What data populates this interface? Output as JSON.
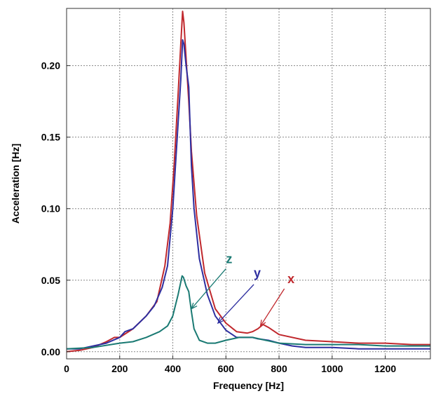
{
  "chart_data": {
    "type": "line",
    "xlabel": "Frequency  [Hz]",
    "ylabel": "Acceleration  [Hz]",
    "xlim": [
      0,
      1370
    ],
    "ylim": [
      -0.005,
      0.24
    ],
    "xticks": [
      0,
      200,
      400,
      600,
      800,
      1000,
      1200
    ],
    "xtick_labels": [
      "0",
      "200",
      "400",
      "600",
      "800",
      "1000",
      "1200"
    ],
    "yticks": [
      0.0,
      0.05,
      0.1,
      0.15,
      0.2
    ],
    "ytick_labels": [
      "0.00",
      "0.05",
      "0.10",
      "0.15",
      "0.20"
    ],
    "grid": true,
    "series": [
      {
        "name": "x",
        "color": "#c0282d",
        "label_at": [
          845,
          0.048
        ],
        "arrow_from": [
          820,
          0.044
        ],
        "arrow_to": [
          730,
          0.018
        ],
        "x": [
          0,
          50,
          100,
          150,
          180,
          200,
          250,
          300,
          340,
          370,
          390,
          405,
          420,
          430,
          437,
          442,
          450,
          460,
          470,
          490,
          520,
          560,
          600,
          640,
          680,
          700,
          720,
          740,
          760,
          800,
          900,
          1000,
          1100,
          1200,
          1300,
          1370
        ],
        "y": [
          0.0,
          0.001,
          0.003,
          0.007,
          0.01,
          0.01,
          0.016,
          0.025,
          0.035,
          0.06,
          0.09,
          0.13,
          0.18,
          0.215,
          0.238,
          0.23,
          0.205,
          0.175,
          0.14,
          0.095,
          0.055,
          0.03,
          0.02,
          0.014,
          0.013,
          0.014,
          0.016,
          0.019,
          0.017,
          0.012,
          0.008,
          0.007,
          0.006,
          0.006,
          0.005,
          0.005
        ]
      },
      {
        "name": "y",
        "color": "#2e2fa0",
        "label_at": [
          718,
          0.052
        ],
        "arrow_from": [
          705,
          0.047
        ],
        "arrow_to": [
          570,
          0.02
        ],
        "x": [
          0,
          50,
          100,
          150,
          200,
          220,
          250,
          300,
          330,
          360,
          380,
          400,
          410,
          420,
          430,
          437,
          442,
          450,
          460,
          470,
          480,
          500,
          530,
          560,
          600,
          640,
          680,
          700,
          720,
          760,
          800,
          850,
          900,
          1000,
          1100,
          1200,
          1300,
          1370
        ],
        "y": [
          0.002,
          0.002,
          0.004,
          0.006,
          0.01,
          0.014,
          0.016,
          0.025,
          0.032,
          0.045,
          0.06,
          0.1,
          0.13,
          0.16,
          0.19,
          0.218,
          0.215,
          0.2,
          0.185,
          0.13,
          0.1,
          0.065,
          0.04,
          0.025,
          0.015,
          0.01,
          0.01,
          0.01,
          0.009,
          0.008,
          0.006,
          0.004,
          0.003,
          0.003,
          0.002,
          0.002,
          0.002,
          0.002
        ]
      },
      {
        "name": "z",
        "color": "#1a7a73",
        "label_at": [
          612,
          0.062
        ],
        "arrow_from": [
          600,
          0.058
        ],
        "arrow_to": [
          470,
          0.03
        ],
        "x": [
          0,
          100,
          200,
          250,
          300,
          350,
          380,
          400,
          420,
          435,
          440,
          450,
          460,
          470,
          480,
          500,
          530,
          560,
          600,
          650,
          700,
          750,
          800,
          900,
          1000,
          1100,
          1200,
          1300,
          1370
        ],
        "y": [
          0.002,
          0.003,
          0.006,
          0.007,
          0.01,
          0.014,
          0.018,
          0.025,
          0.04,
          0.053,
          0.052,
          0.046,
          0.042,
          0.028,
          0.016,
          0.008,
          0.006,
          0.006,
          0.008,
          0.01,
          0.01,
          0.008,
          0.006,
          0.005,
          0.005,
          0.005,
          0.004,
          0.004,
          0.004
        ]
      }
    ]
  }
}
